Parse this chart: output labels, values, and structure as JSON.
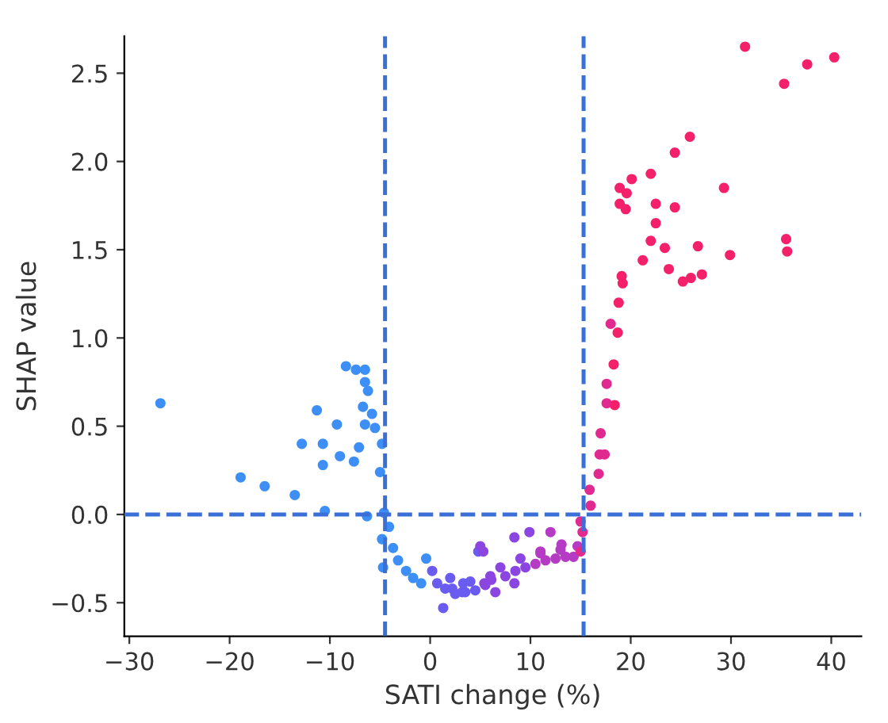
{
  "chart_data": {
    "type": "scatter",
    "xlabel": "SATI change (%)",
    "ylabel": "SHAP value",
    "xlim": [
      -30.5,
      43
    ],
    "ylim": [
      -0.69,
      2.71
    ],
    "xticks": [
      {
        "value": -30,
        "label": "−30"
      },
      {
        "value": -20,
        "label": "−20"
      },
      {
        "value": -10,
        "label": "−10"
      },
      0,
      10,
      20,
      30,
      40
    ],
    "yticks": [
      {
        "value": -0.5,
        "label": "−0.5"
      },
      {
        "value": 0,
        "label": "0.0"
      },
      0.5,
      {
        "value": 1,
        "label": "1.0"
      },
      1.5,
      {
        "value": 2,
        "label": "2.0"
      },
      2.5
    ],
    "grid": false,
    "legend": false,
    "marker": "circle",
    "ref_lines": [
      {
        "axis": "x",
        "value": -4.5,
        "color": "#3a6fd8",
        "line_style": "dashed"
      },
      {
        "axis": "x",
        "value": 15.3,
        "color": "#3a6fd8",
        "line_style": "dashed"
      },
      {
        "axis": "y",
        "value": 0,
        "color": "#3a6fd8",
        "line_style": "dashed"
      }
    ],
    "series": [
      {
        "x": [
          -26.9,
          -18.9,
          -16.5,
          -13.5,
          -12.8,
          -11.3,
          -10.7,
          -10.7,
          -10.5,
          -9.3,
          -9.0,
          -8.4,
          -7.6,
          -7.4,
          -7.1,
          -6.7,
          -6.5,
          -6.5,
          -6.2,
          -6.5,
          -5.8,
          -5.5,
          -4.8,
          -5.0,
          -6.3,
          -4.6,
          -4.1,
          -4.8,
          -4.7,
          -3.7,
          -3.2,
          -2.4,
          -1.7,
          -0.9,
          -0.4,
          0.2,
          0.7,
          1.3,
          2.2,
          3.2,
          4.8,
          5.0,
          5.4,
          6.1,
          3.3,
          5.3,
          6.0,
          8.4,
          8.4,
          9.9,
          11.0,
          12.0,
          13.1,
          14.3,
          14.7,
          15.0,
          15.2,
          15.0,
          15.9,
          16.0,
          16.8,
          16.9,
          17.4,
          17.0,
          17.6,
          18.4,
          17.6,
          18.3,
          18.7,
          18.0,
          18.8,
          19.2,
          19.1,
          18.9,
          18.9,
          19.5,
          19.6,
          20.1,
          21.2,
          22.0,
          22.0,
          22.5,
          22.5,
          23.4,
          23.8,
          24.4,
          24.4,
          25.9,
          25.2,
          26.0,
          27.1,
          26.7,
          29.3,
          29.9,
          31.4,
          35.3,
          35.5,
          35.6,
          37.6,
          40.3,
          1.5,
          2.5,
          3.5,
          4.5,
          5.5,
          6.5,
          7.5,
          8.5,
          9.5,
          10.5,
          11.5,
          12.5,
          13.5,
          2.0,
          4.0,
          7.0,
          9.0,
          11.0,
          13.0
        ],
        "values": [
          0.63,
          0.21,
          0.16,
          0.11,
          0.4,
          0.59,
          0.4,
          0.28,
          0.02,
          0.51,
          0.33,
          0.84,
          0.3,
          0.82,
          0.38,
          0.61,
          0.82,
          0.75,
          0.7,
          0.51,
          0.57,
          0.49,
          0.4,
          0.24,
          -0.01,
          0.01,
          -0.07,
          -0.14,
          -0.3,
          -0.19,
          -0.26,
          -0.32,
          -0.36,
          -0.39,
          -0.25,
          -0.32,
          -0.39,
          -0.53,
          -0.42,
          -0.44,
          -0.21,
          -0.18,
          -0.39,
          -0.37,
          -0.39,
          -0.21,
          -0.35,
          -0.13,
          -0.39,
          -0.1,
          -0.21,
          -0.1,
          -0.17,
          -0.24,
          -0.18,
          -0.21,
          -0.1,
          -0.04,
          0.14,
          0.05,
          0.23,
          0.34,
          0.34,
          0.46,
          0.63,
          0.62,
          0.74,
          0.85,
          1.03,
          1.08,
          1.2,
          1.31,
          1.35,
          1.76,
          1.85,
          1.73,
          1.82,
          1.9,
          1.44,
          1.55,
          1.93,
          1.76,
          1.65,
          1.51,
          1.39,
          2.05,
          1.74,
          2.14,
          1.32,
          1.34,
          1.36,
          1.52,
          1.85,
          1.47,
          2.65,
          2.44,
          1.56,
          1.49,
          2.55,
          2.59,
          -0.42,
          -0.45,
          -0.44,
          -0.43,
          -0.4,
          -0.44,
          -0.35,
          -0.32,
          -0.3,
          -0.28,
          -0.26,
          -0.25,
          -0.24,
          -0.36,
          -0.38,
          -0.3,
          -0.25,
          -0.22,
          -0.2
        ],
        "colors": [
          "#3d8ff5",
          "#3d8ff5",
          "#3d8ff5",
          "#3d8ff5",
          "#3d8ff5",
          "#3d8ff5",
          "#3d8ff5",
          "#3d8ff5",
          "#3d8ff5",
          "#3d8ff5",
          "#3d8ff5",
          "#3d8ff5",
          "#3d8ff5",
          "#3d8ff5",
          "#3d8ff5",
          "#3d8ff5",
          "#3d8ff5",
          "#3d8ff5",
          "#3d8ff5",
          "#3d8ff5",
          "#3d8ff5",
          "#3d8ff5",
          "#3d8ff5",
          "#3d8ff5",
          "#3d8ff5",
          "#3d8ff5",
          "#3d8ff5",
          "#3d8ff5",
          "#3d8ff5",
          "#3d8ff5",
          "#3d8ff5",
          "#3d8ff5",
          "#3d8ff5",
          "#3d8ff5",
          "#3d8ff5",
          "#6a5cf0",
          "#6a5cf0",
          "#6a5cf0",
          "#6a5cf0",
          "#6a5cf0",
          "#6a5cf0",
          "#8b45e0",
          "#8b45e0",
          "#8b45e0",
          "#6a5cf0",
          "#8b45e0",
          "#8b45e0",
          "#8b45e0",
          "#8b45e0",
          "#8b45e0",
          "#b53bc5",
          "#b53bc5",
          "#b53bc5",
          "#b53bc5",
          "#b53bc5",
          "#e02a90",
          "#e02a90",
          "#e02a90",
          "#e02a90",
          "#e02a90",
          "#e02a90",
          "#e02a90",
          "#e02a90",
          "#e02a90",
          "#e02a90",
          "#f5206a",
          "#e02a90",
          "#f5206a",
          "#f5206a",
          "#e02a90",
          "#f5206a",
          "#f5206a",
          "#f5206a",
          "#f5206a",
          "#f5206a",
          "#f5206a",
          "#f5206a",
          "#f5206a",
          "#f5206a",
          "#f5206a",
          "#f5206a",
          "#f5206a",
          "#f5206a",
          "#f5206a",
          "#f5206a",
          "#f5206a",
          "#f5206a",
          "#f5206a",
          "#f5206a",
          "#f5206a",
          "#f5206a",
          "#f5206a",
          "#f5206a",
          "#f5206a",
          "#f5206a",
          "#f5206a",
          "#f5206a",
          "#f5206a",
          "#f5206a",
          "#f5206a",
          "#6a5cf0",
          "#6a5cf0",
          "#6a5cf0",
          "#6a5cf0",
          "#8b45e0",
          "#8b45e0",
          "#8b45e0",
          "#8b45e0",
          "#8b45e0",
          "#b53bc5",
          "#b53bc5",
          "#b53bc5",
          "#b53bc5",
          "#6a5cf0",
          "#6a5cf0",
          "#8b45e0",
          "#8b45e0",
          "#b53bc5",
          "#b53bc5"
        ]
      }
    ]
  }
}
